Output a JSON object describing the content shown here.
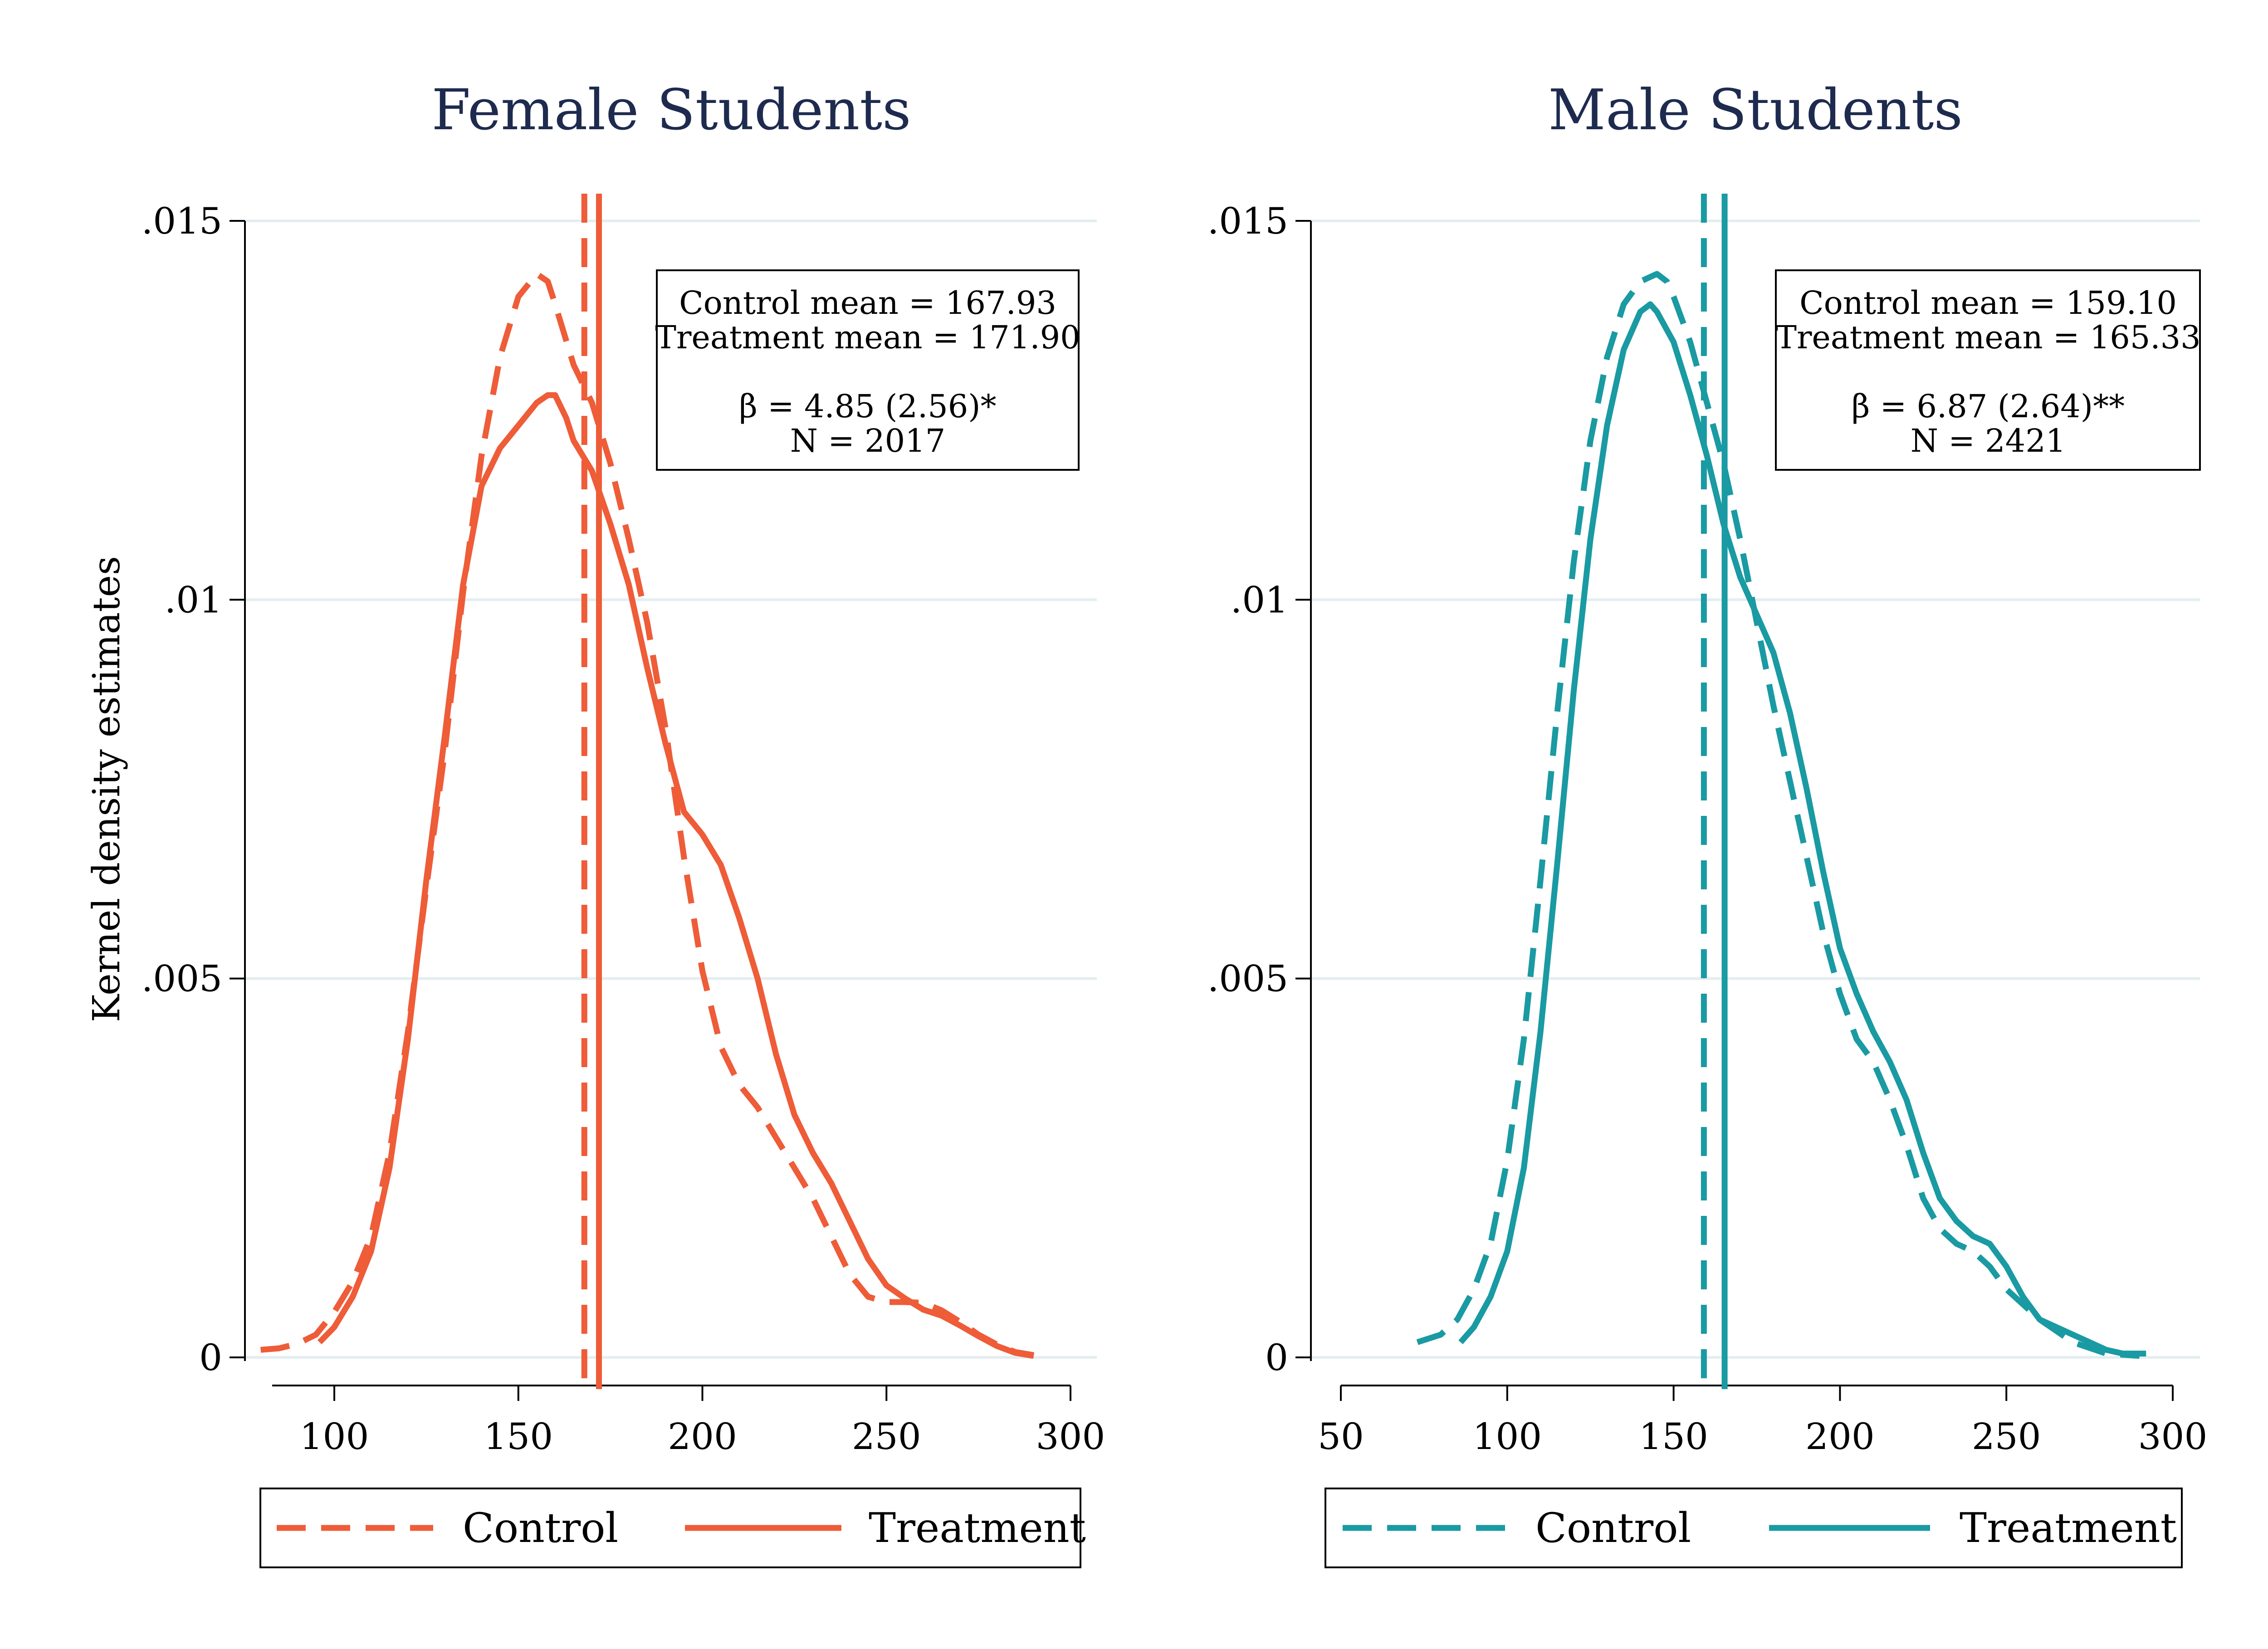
{
  "figure": {
    "ylabel": "Kernel density estimates"
  },
  "chart_data": [
    {
      "type": "line",
      "title": "Female Students",
      "xlabel": "",
      "ylabel": "Kernel density estimates",
      "xlim": [
        80,
        300
      ],
      "ylim": [
        0,
        0.015
      ],
      "x_ticks": [
        100,
        150,
        200,
        250,
        300
      ],
      "x_tick_labels": [
        "100",
        "150",
        "200",
        "250",
        "300"
      ],
      "y_ticks": [
        0,
        0.005,
        0.01,
        0.015
      ],
      "y_tick_labels": [
        "0",
        ".005",
        ".01",
        ".015"
      ],
      "grid": true,
      "color": "#ee5c38",
      "legend": {
        "position": "bottom",
        "entries": [
          {
            "label": "Control",
            "style": "dashed"
          },
          {
            "label": "Treatment",
            "style": "solid"
          }
        ]
      },
      "stats_box": {
        "position": "top-right",
        "lines": [
          "Control mean = 167.93",
          "Treatment mean = 171.90",
          "",
          "β = 4.85 (2.56)*",
          "N = 2017"
        ]
      },
      "mean_lines": [
        {
          "series": "Control",
          "x": 167.93,
          "style": "dashed"
        },
        {
          "series": "Treatment",
          "x": 171.9,
          "style": "solid"
        }
      ],
      "series": [
        {
          "name": "Control",
          "style": "dashed",
          "points": [
            [
              80,
              0.0001
            ],
            [
              85,
              0.00012
            ],
            [
              90,
              0.00018
            ],
            [
              95,
              0.0003
            ],
            [
              100,
              0.0006
            ],
            [
              105,
              0.001
            ],
            [
              110,
              0.0016
            ],
            [
              115,
              0.0027
            ],
            [
              120,
              0.0043
            ],
            [
              125,
              0.0062
            ],
            [
              130,
              0.008
            ],
            [
              135,
              0.0101
            ],
            [
              140,
              0.0119
            ],
            [
              145,
              0.0132
            ],
            [
              150,
              0.014
            ],
            [
              155,
              0.0143
            ],
            [
              158,
              0.0142
            ],
            [
              160,
              0.0139
            ],
            [
              165,
              0.0131
            ],
            [
              170,
              0.0126
            ],
            [
              175,
              0.0118
            ],
            [
              180,
              0.0108
            ],
            [
              185,
              0.0097
            ],
            [
              190,
              0.0083
            ],
            [
              195,
              0.0066
            ],
            [
              200,
              0.0051
            ],
            [
              205,
              0.0041
            ],
            [
              210,
              0.0036
            ],
            [
              215,
              0.0033
            ],
            [
              220,
              0.0029
            ],
            [
              225,
              0.0025
            ],
            [
              230,
              0.0021
            ],
            [
              235,
              0.0016
            ],
            [
              240,
              0.0011
            ],
            [
              245,
              0.0008
            ],
            [
              250,
              0.00073
            ],
            [
              255,
              0.00073
            ],
            [
              260,
              0.00072
            ],
            [
              265,
              0.00062
            ],
            [
              270,
              0.00047
            ],
            [
              275,
              0.0003
            ],
            [
              280,
              0.00017
            ],
            [
              285,
              7e-05
            ],
            [
              290,
              3e-05
            ]
          ]
        },
        {
          "name": "Treatment",
          "style": "solid",
          "points": [
            [
              96,
              0.0002
            ],
            [
              100,
              0.0004
            ],
            [
              105,
              0.0008
            ],
            [
              110,
              0.0014
            ],
            [
              115,
              0.0025
            ],
            [
              120,
              0.0042
            ],
            [
              125,
              0.0063
            ],
            [
              130,
              0.0082
            ],
            [
              135,
              0.0102
            ],
            [
              140,
              0.0115
            ],
            [
              145,
              0.012
            ],
            [
              150,
              0.0123
            ],
            [
              155,
              0.0126
            ],
            [
              158,
              0.0127
            ],
            [
              160,
              0.0127
            ],
            [
              163,
              0.0124
            ],
            [
              165,
              0.0121
            ],
            [
              170,
              0.0117
            ],
            [
              175,
              0.011
            ],
            [
              180,
              0.0102
            ],
            [
              185,
              0.0091
            ],
            [
              190,
              0.0081
            ],
            [
              195,
              0.0072
            ],
            [
              200,
              0.0069
            ],
            [
              205,
              0.0065
            ],
            [
              210,
              0.0058
            ],
            [
              215,
              0.005
            ],
            [
              220,
              0.004
            ],
            [
              225,
              0.0032
            ],
            [
              230,
              0.0027
            ],
            [
              235,
              0.0023
            ],
            [
              240,
              0.0018
            ],
            [
              245,
              0.0013
            ],
            [
              250,
              0.00095
            ],
            [
              255,
              0.00078
            ],
            [
              260,
              0.00063
            ],
            [
              265,
              0.00055
            ],
            [
              270,
              0.00042
            ],
            [
              275,
              0.00028
            ],
            [
              280,
              0.00015
            ],
            [
              285,
              6e-05
            ],
            [
              290,
              2e-05
            ]
          ]
        }
      ]
    },
    {
      "type": "line",
      "title": "Male Students",
      "xlabel": "",
      "ylabel": "",
      "xlim": [
        50,
        300
      ],
      "ylim": [
        0,
        0.015
      ],
      "x_ticks": [
        50,
        100,
        150,
        200,
        250,
        300
      ],
      "x_tick_labels": [
        "50",
        "100",
        "150",
        "200",
        "250",
        "300"
      ],
      "y_ticks": [
        0,
        0.005,
        0.01,
        0.015
      ],
      "y_tick_labels": [
        "0",
        ".005",
        ".01",
        ".015"
      ],
      "grid": true,
      "color": "#1a9aa2",
      "legend": {
        "position": "bottom",
        "entries": [
          {
            "label": "Control",
            "style": "dashed"
          },
          {
            "label": "Treatment",
            "style": "solid"
          }
        ]
      },
      "stats_box": {
        "position": "top-right",
        "lines": [
          "Control mean = 159.10",
          "Treatment mean = 165.33",
          "",
          "β = 6.87 (2.64)**",
          "N = 2421"
        ]
      },
      "mean_lines": [
        {
          "series": "Control",
          "x": 159.1,
          "style": "dashed"
        },
        {
          "series": "Treatment",
          "x": 165.33,
          "style": "solid"
        }
      ],
      "series": [
        {
          "name": "Control",
          "style": "dashed",
          "points": [
            [
              73,
              0.0002
            ],
            [
              80,
              0.0003
            ],
            [
              85,
              0.0005
            ],
            [
              90,
              0.0009
            ],
            [
              95,
              0.0015
            ],
            [
              100,
              0.0026
            ],
            [
              105,
              0.0042
            ],
            [
              110,
              0.0063
            ],
            [
              115,
              0.0085
            ],
            [
              120,
              0.0105
            ],
            [
              125,
              0.0121
            ],
            [
              130,
              0.0132
            ],
            [
              135,
              0.0139
            ],
            [
              140,
              0.0142
            ],
            [
              145,
              0.0143
            ],
            [
              148,
              0.0142
            ],
            [
              150,
              0.014
            ],
            [
              155,
              0.0134
            ],
            [
              160,
              0.0126
            ],
            [
              165,
              0.0118
            ],
            [
              170,
              0.0108
            ],
            [
              175,
              0.0097
            ],
            [
              180,
              0.0086
            ],
            [
              185,
              0.0076
            ],
            [
              190,
              0.0066
            ],
            [
              195,
              0.0056
            ],
            [
              200,
              0.0048
            ],
            [
              205,
              0.0042
            ],
            [
              210,
              0.0039
            ],
            [
              215,
              0.0034
            ],
            [
              220,
              0.0028
            ],
            [
              225,
              0.0021
            ],
            [
              230,
              0.0017
            ],
            [
              235,
              0.0015
            ],
            [
              240,
              0.0014
            ],
            [
              245,
              0.0012
            ],
            [
              250,
              0.0009
            ],
            [
              255,
              0.0007
            ],
            [
              260,
              0.0005
            ],
            [
              265,
              0.00035
            ],
            [
              270,
              0.0002
            ],
            [
              280,
              5e-05
            ],
            [
              290,
              2e-05
            ]
          ]
        },
        {
          "name": "Treatment",
          "style": "solid",
          "points": [
            [
              86,
              0.0002
            ],
            [
              90,
              0.0004
            ],
            [
              95,
              0.0008
            ],
            [
              100,
              0.0014
            ],
            [
              105,
              0.0025
            ],
            [
              110,
              0.0043
            ],
            [
              115,
              0.0065
            ],
            [
              120,
              0.0088
            ],
            [
              125,
              0.0108
            ],
            [
              130,
              0.0123
            ],
            [
              135,
              0.0133
            ],
            [
              140,
              0.0138
            ],
            [
              143,
              0.0139
            ],
            [
              145,
              0.0138
            ],
            [
              150,
              0.0134
            ],
            [
              155,
              0.0127
            ],
            [
              160,
              0.0119
            ],
            [
              165,
              0.011
            ],
            [
              170,
              0.0103
            ],
            [
              175,
              0.0098
            ],
            [
              180,
              0.0093
            ],
            [
              185,
              0.0085
            ],
            [
              190,
              0.0075
            ],
            [
              195,
              0.0064
            ],
            [
              200,
              0.0054
            ],
            [
              205,
              0.0048
            ],
            [
              210,
              0.0043
            ],
            [
              215,
              0.0039
            ],
            [
              220,
              0.0034
            ],
            [
              225,
              0.0027
            ],
            [
              230,
              0.0021
            ],
            [
              235,
              0.0018
            ],
            [
              240,
              0.0016
            ],
            [
              245,
              0.0015
            ],
            [
              250,
              0.0012
            ],
            [
              255,
              0.0008
            ],
            [
              260,
              0.0005
            ],
            [
              265,
              0.0004
            ],
            [
              270,
              0.0003
            ],
            [
              275,
              0.0002
            ],
            [
              280,
              0.0001
            ],
            [
              285,
              5e-05
            ],
            [
              292,
              5e-05
            ]
          ]
        }
      ]
    }
  ]
}
